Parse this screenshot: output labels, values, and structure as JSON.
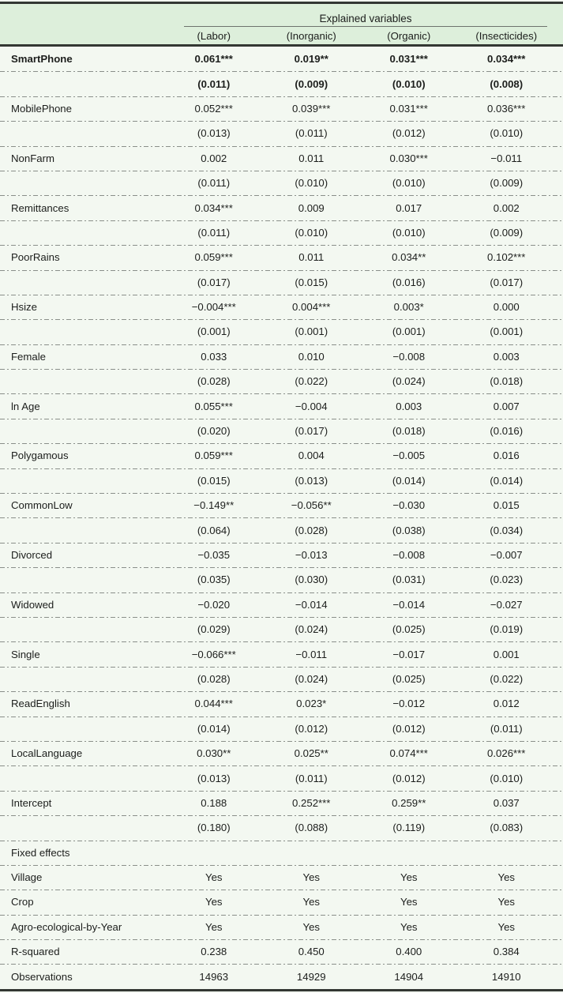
{
  "table": {
    "spanner": "Explained variables",
    "columns": [
      "(Labor)",
      "(Inorganic)",
      "(Organic)",
      "(Insecticides)"
    ],
    "rows": [
      {
        "label": "SmartPhone",
        "bold": true,
        "coef": [
          "0.061***",
          "0.019**",
          "0.031***",
          "0.034***"
        ],
        "se": [
          "(0.011)",
          "(0.009)",
          "(0.010)",
          "(0.008)"
        ]
      },
      {
        "label": "MobilePhone",
        "coef": [
          "0.052***",
          "0.039***",
          "0.031***",
          "0.036***"
        ],
        "se": [
          "(0.013)",
          "(0.011)",
          "(0.012)",
          "(0.010)"
        ]
      },
      {
        "label": "NonFarm",
        "coef": [
          "0.002",
          "0.011",
          "0.030***",
          "−0.011"
        ],
        "se": [
          "(0.011)",
          "(0.010)",
          "(0.010)",
          "(0.009)"
        ]
      },
      {
        "label": "Remittances",
        "coef": [
          "0.034***",
          "0.009",
          "0.017",
          "0.002"
        ],
        "se": [
          "(0.011)",
          "(0.010)",
          "(0.010)",
          "(0.009)"
        ]
      },
      {
        "label": "PoorRains",
        "coef": [
          "0.059***",
          "0.011",
          "0.034**",
          "0.102***"
        ],
        "se": [
          "(0.017)",
          "(0.015)",
          "(0.016)",
          "(0.017)"
        ]
      },
      {
        "label": "Hsize",
        "coef": [
          "−0.004***",
          "0.004***",
          "0.003*",
          "0.000"
        ],
        "se": [
          "(0.001)",
          "(0.001)",
          "(0.001)",
          "(0.001)"
        ]
      },
      {
        "label": "Female",
        "coef": [
          "0.033",
          "0.010",
          "−0.008",
          "0.003"
        ],
        "se": [
          "(0.028)",
          "(0.022)",
          "(0.024)",
          "(0.018)"
        ]
      },
      {
        "label": "ln Age",
        "coef": [
          "0.055***",
          "−0.004",
          "0.003",
          "0.007"
        ],
        "se": [
          "(0.020)",
          "(0.017)",
          "(0.018)",
          "(0.016)"
        ]
      },
      {
        "label": "Polygamous",
        "coef": [
          "0.059***",
          "0.004",
          "−0.005",
          "0.016"
        ],
        "se": [
          "(0.015)",
          "(0.013)",
          "(0.014)",
          "(0.014)"
        ]
      },
      {
        "label": "CommonLow",
        "coef": [
          "−0.149**",
          "−0.056**",
          "−0.030",
          "0.015"
        ],
        "se": [
          "(0.064)",
          "(0.028)",
          "(0.038)",
          "(0.034)"
        ]
      },
      {
        "label": "Divorced",
        "coef": [
          "−0.035",
          "−0.013",
          "−0.008",
          "−0.007"
        ],
        "se": [
          "(0.035)",
          "(0.030)",
          "(0.031)",
          "(0.023)"
        ]
      },
      {
        "label": "Widowed",
        "coef": [
          "−0.020",
          "−0.014",
          "−0.014",
          "−0.027"
        ],
        "se": [
          "(0.029)",
          "(0.024)",
          "(0.025)",
          "(0.019)"
        ]
      },
      {
        "label": "Single",
        "coef": [
          "−0.066***",
          "−0.011",
          "−0.017",
          "0.001"
        ],
        "se": [
          "(0.028)",
          "(0.024)",
          "(0.025)",
          "(0.022)"
        ]
      },
      {
        "label": "ReadEnglish",
        "coef": [
          "0.044***",
          "0.023*",
          "−0.012",
          "0.012"
        ],
        "se": [
          "(0.014)",
          "(0.012)",
          "(0.012)",
          "(0.011)"
        ]
      },
      {
        "label": "LocalLanguage",
        "coef": [
          "0.030**",
          "0.025**",
          "0.074***",
          "0.026***"
        ],
        "se": [
          "(0.013)",
          "(0.011)",
          "(0.012)",
          "(0.010)"
        ]
      },
      {
        "label": "Intercept",
        "coef": [
          "0.188",
          "0.252***",
          "0.259**",
          "0.037"
        ],
        "se": [
          "(0.180)",
          "(0.088)",
          "(0.119)",
          "(0.083)"
        ]
      }
    ],
    "section_rows": [
      {
        "label": "Fixed effects",
        "values": [
          "",
          "",
          "",
          ""
        ]
      },
      {
        "label": "Village",
        "values": [
          "Yes",
          "Yes",
          "Yes",
          "Yes"
        ]
      },
      {
        "label": "Crop",
        "values": [
          "Yes",
          "Yes",
          "Yes",
          "Yes"
        ]
      },
      {
        "label": "Agro-ecological-by-Year",
        "values": [
          "Yes",
          "Yes",
          "Yes",
          "Yes"
        ]
      },
      {
        "label": "R-squared",
        "values": [
          "0.238",
          "0.450",
          "0.400",
          "0.384"
        ]
      },
      {
        "label": "Observations",
        "values": [
          "14963",
          "14929",
          "14904",
          "14910"
        ]
      }
    ],
    "colors": {
      "header_bg": "#ddefdb",
      "body_bg": "#f3f8f1",
      "rule": "#333733",
      "dash": "#8a8f8a",
      "text": "#1c1e1c"
    }
  }
}
